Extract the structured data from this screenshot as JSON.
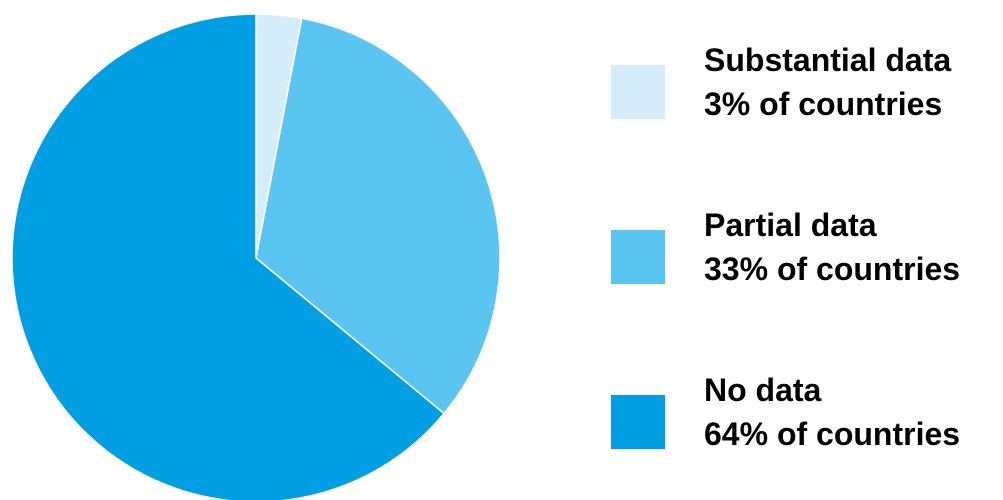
{
  "chart_data": {
    "type": "pie",
    "title": "",
    "slices": [
      {
        "label": "Substantial data",
        "value": 3,
        "value_label": "3% of countries",
        "color": "#d5ecfa"
      },
      {
        "label": "Partial data",
        "value": 33,
        "value_label": "33% of countries",
        "color": "#5bc5f2"
      },
      {
        "label": "No data",
        "value": 64,
        "value_label": "64% of countries",
        "color": "#009fe3"
      }
    ],
    "start_angle": "top (12 o'clock)",
    "direction": "clockwise",
    "legend_position": "right"
  }
}
